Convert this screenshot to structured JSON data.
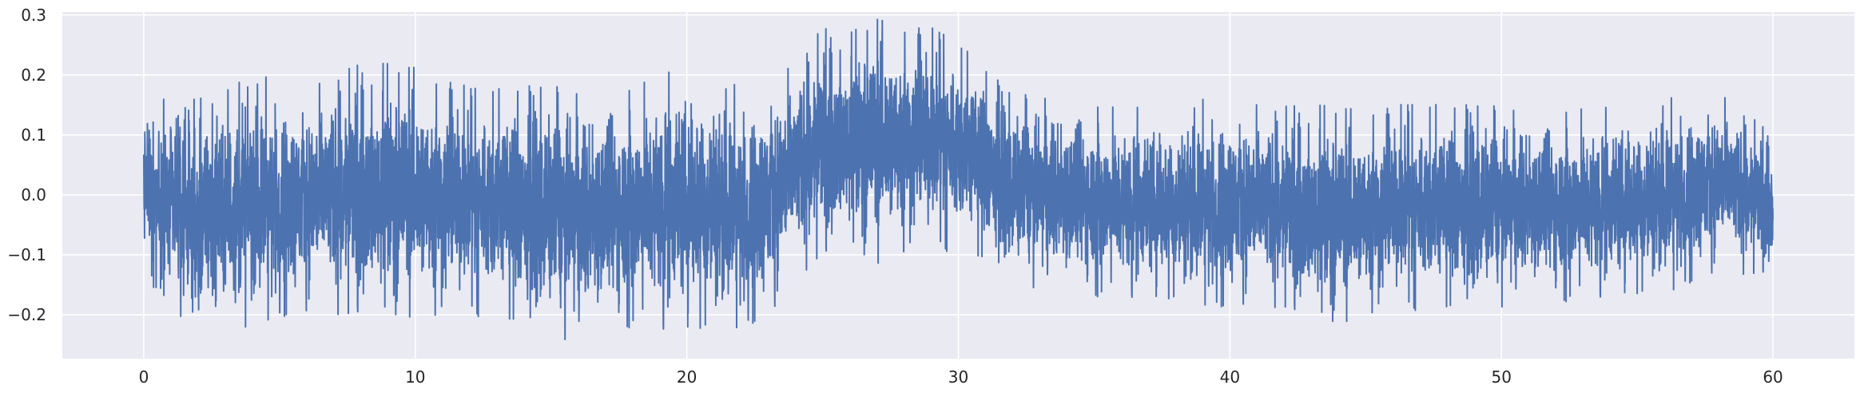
{
  "chart_data": {
    "type": "line",
    "title": "",
    "xlabel": "",
    "ylabel": "",
    "xlim": [
      -3,
      63
    ],
    "ylim": [
      -0.273,
      0.305
    ],
    "x_ticks": [
      0,
      10,
      20,
      30,
      40,
      50,
      60
    ],
    "x_tick_labels": [
      "0",
      "10",
      "20",
      "30",
      "40",
      "50",
      "60"
    ],
    "y_ticks": [
      -0.2,
      -0.1,
      0.0,
      0.1,
      0.2,
      0.3
    ],
    "y_tick_labels": [
      "−0.2",
      "−0.1",
      "0.0",
      "0.1",
      "0.2",
      "0.3"
    ],
    "grid": true,
    "legend": "none",
    "colors": {
      "background": "#eaeaf2",
      "grid": "#ffffff",
      "line": "#4c72b0"
    },
    "series": [
      {
        "envelope": {
          "x": [
            0,
            2,
            4,
            6,
            8,
            10,
            12,
            14,
            16,
            18,
            20,
            22,
            23,
            24,
            25,
            26,
            27,
            28,
            29,
            30,
            31,
            32,
            34,
            36,
            38,
            40,
            42,
            44,
            46,
            48,
            50,
            52,
            54,
            56,
            58,
            60
          ],
          "y_max": [
            0.17,
            0.16,
            0.2,
            0.19,
            0.22,
            0.22,
            0.18,
            0.19,
            0.18,
            0.19,
            0.22,
            0.18,
            0.2,
            0.23,
            0.28,
            0.27,
            0.3,
            0.29,
            0.28,
            0.26,
            0.22,
            0.17,
            0.17,
            0.15,
            0.15,
            0.17,
            0.15,
            0.15,
            0.15,
            0.16,
            0.15,
            0.15,
            0.15,
            0.16,
            0.18,
            0.1
          ],
          "y_min": [
            -0.14,
            -0.24,
            -0.22,
            -0.21,
            -0.2,
            -0.21,
            -0.2,
            -0.23,
            -0.25,
            -0.22,
            -0.23,
            -0.23,
            -0.22,
            -0.15,
            -0.1,
            -0.09,
            -0.12,
            -0.1,
            -0.09,
            -0.1,
            -0.12,
            -0.15,
            -0.17,
            -0.17,
            -0.18,
            -0.2,
            -0.19,
            -0.22,
            -0.19,
            -0.2,
            -0.19,
            -0.18,
            -0.17,
            -0.17,
            -0.14,
            -0.13
          ]
        }
      }
    ]
  }
}
